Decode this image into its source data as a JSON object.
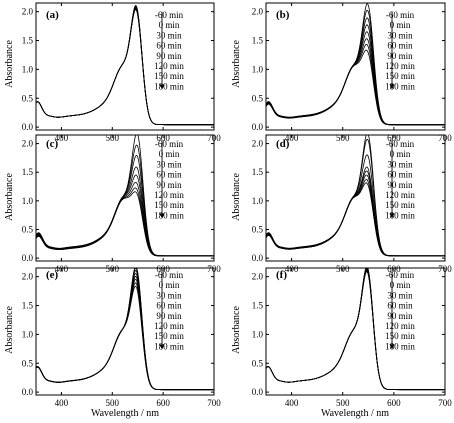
{
  "chart_data": {
    "type": "line",
    "xlabel": "Wavelength / nm",
    "ylabel": "Absorbance",
    "xlim": [
      350,
      700
    ],
    "ylim": [
      -0.05,
      2.15
    ],
    "x_ticks": [
      "400",
      "500",
      "600",
      "700"
    ],
    "y_ticks": [
      "0.0",
      "0.5",
      "1.0",
      "1.5",
      "2.0"
    ],
    "legend": [
      "-60 min",
      "0 min",
      "30 min",
      "60 min",
      "90 min",
      "120 min",
      "150 min",
      "180 min"
    ],
    "line_color": "#000000",
    "panels": [
      {
        "label": "(a)",
        "series": [
          {
            "name": "-60 min",
            "peak_nm": 551,
            "peak_abs": 1.95
          },
          {
            "name": "0 min",
            "peak_nm": 551,
            "peak_abs": 1.94
          },
          {
            "name": "30 min",
            "peak_nm": 551,
            "peak_abs": 1.93
          },
          {
            "name": "60 min",
            "peak_nm": 551,
            "peak_abs": 1.92
          },
          {
            "name": "90 min",
            "peak_nm": 551,
            "peak_abs": 1.91
          },
          {
            "name": "120 min",
            "peak_nm": 551,
            "peak_abs": 1.9
          },
          {
            "name": "150 min",
            "peak_nm": 551,
            "peak_abs": 1.89
          },
          {
            "name": "180 min",
            "peak_nm": 551,
            "peak_abs": 1.88
          }
        ]
      },
      {
        "label": "(b)",
        "series": [
          {
            "name": "-60 min",
            "peak_nm": 553,
            "peak_abs": 1.98
          },
          {
            "name": "0 min",
            "peak_nm": 553,
            "peak_abs": 1.87
          },
          {
            "name": "30 min",
            "peak_nm": 553,
            "peak_abs": 1.74
          },
          {
            "name": "60 min",
            "peak_nm": 553,
            "peak_abs": 1.62
          },
          {
            "name": "90 min",
            "peak_nm": 553,
            "peak_abs": 1.5
          },
          {
            "name": "120 min",
            "peak_nm": 553,
            "peak_abs": 1.38
          },
          {
            "name": "150 min",
            "peak_nm": 553,
            "peak_abs": 1.28
          },
          {
            "name": "180 min",
            "peak_nm": 553,
            "peak_abs": 1.18
          }
        ]
      },
      {
        "label": "(c)",
        "series": [
          {
            "name": "-60 min",
            "peak_nm": 553,
            "peak_abs": 2.02
          },
          {
            "name": "0 min",
            "peak_nm": 553,
            "peak_abs": 1.82
          },
          {
            "name": "30 min",
            "peak_nm": 553,
            "peak_abs": 1.64
          },
          {
            "name": "60 min",
            "peak_nm": 553,
            "peak_abs": 1.44
          },
          {
            "name": "90 min",
            "peak_nm": 553,
            "peak_abs": 1.3
          },
          {
            "name": "120 min",
            "peak_nm": 553,
            "peak_abs": 1.17
          },
          {
            "name": "150 min",
            "peak_nm": 553,
            "peak_abs": 1.07
          },
          {
            "name": "180 min",
            "peak_nm": 553,
            "peak_abs": 1.0
          }
        ]
      },
      {
        "label": "(d)",
        "series": [
          {
            "name": "-60 min",
            "peak_nm": 553,
            "peak_abs": 2.02
          },
          {
            "name": "0 min",
            "peak_nm": 553,
            "peak_abs": 1.92
          },
          {
            "name": "30 min",
            "peak_nm": 553,
            "peak_abs": 1.65
          },
          {
            "name": "60 min",
            "peak_nm": 553,
            "peak_abs": 1.44
          },
          {
            "name": "90 min",
            "peak_nm": 553,
            "peak_abs": 1.37
          },
          {
            "name": "120 min",
            "peak_nm": 553,
            "peak_abs": 1.3
          },
          {
            "name": "150 min",
            "peak_nm": 553,
            "peak_abs": 1.22
          },
          {
            "name": "180 min",
            "peak_nm": 553,
            "peak_abs": 1.16
          }
        ]
      },
      {
        "label": "(e)",
        "series": [
          {
            "name": "-60 min",
            "peak_nm": 551,
            "peak_abs": 2.02
          },
          {
            "name": "0 min",
            "peak_nm": 551,
            "peak_abs": 1.99
          },
          {
            "name": "30 min",
            "peak_nm": 551,
            "peak_abs": 1.95
          },
          {
            "name": "60 min",
            "peak_nm": 551,
            "peak_abs": 1.9
          },
          {
            "name": "90 min",
            "peak_nm": 551,
            "peak_abs": 1.85
          },
          {
            "name": "120 min",
            "peak_nm": 551,
            "peak_abs": 1.8
          },
          {
            "name": "150 min",
            "peak_nm": 551,
            "peak_abs": 1.74
          },
          {
            "name": "180 min",
            "peak_nm": 551,
            "peak_abs": 1.68
          }
        ]
      },
      {
        "label": "(f)",
        "series": [
          {
            "name": "-60 min",
            "peak_nm": 552,
            "peak_abs": 2.02
          },
          {
            "name": "0 min",
            "peak_nm": 552,
            "peak_abs": 2.0
          },
          {
            "name": "30 min",
            "peak_nm": 552,
            "peak_abs": 1.99
          },
          {
            "name": "60 min",
            "peak_nm": 552,
            "peak_abs": 1.98
          },
          {
            "name": "90 min",
            "peak_nm": 552,
            "peak_abs": 1.96
          },
          {
            "name": "120 min",
            "peak_nm": 552,
            "peak_abs": 1.95
          },
          {
            "name": "150 min",
            "peak_nm": 552,
            "peak_abs": 1.94
          },
          {
            "name": "180 min",
            "peak_nm": 552,
            "peak_abs": 1.93
          }
        ]
      }
    ]
  }
}
